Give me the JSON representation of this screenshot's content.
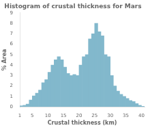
{
  "chart_data": {
    "type": "histogram",
    "title": "Histogram of crustal thickness for Mars",
    "xlabel": "Crustal thickness (km)",
    "ylabel": "% Area",
    "bins": [
      1,
      2,
      3,
      4,
      5,
      6,
      7,
      8,
      9,
      10,
      11,
      12,
      13,
      14,
      15,
      16,
      17,
      18,
      19,
      20,
      21,
      22,
      23,
      24,
      25,
      26,
      27,
      28,
      29,
      30,
      31,
      32,
      33,
      34,
      35,
      36,
      37,
      38,
      39,
      40,
      41
    ],
    "values": [
      0.1,
      0.15,
      0.25,
      0.65,
      1.05,
      1.3,
      1.6,
      2.3,
      2.6,
      3.3,
      4.0,
      4.5,
      4.8,
      4.5,
      3.8,
      3.2,
      3.0,
      3.1,
      3.0,
      4.0,
      4.8,
      5.0,
      6.5,
      7.0,
      8.0,
      7.2,
      6.8,
      5.0,
      4.8,
      3.0,
      2.0,
      1.5,
      1.2,
      1.0,
      0.8,
      0.6,
      0.5,
      0.3,
      0.15,
      0.05
    ],
    "color": "#82b8cc",
    "xlim": [
      1,
      41
    ],
    "ylim": [
      0,
      9
    ],
    "xticks": [
      1,
      5,
      10,
      15,
      20,
      25,
      30,
      35,
      40
    ],
    "yticks": [
      0,
      1,
      2,
      3,
      4,
      5,
      6,
      7,
      8,
      9
    ],
    "grid": false
  }
}
